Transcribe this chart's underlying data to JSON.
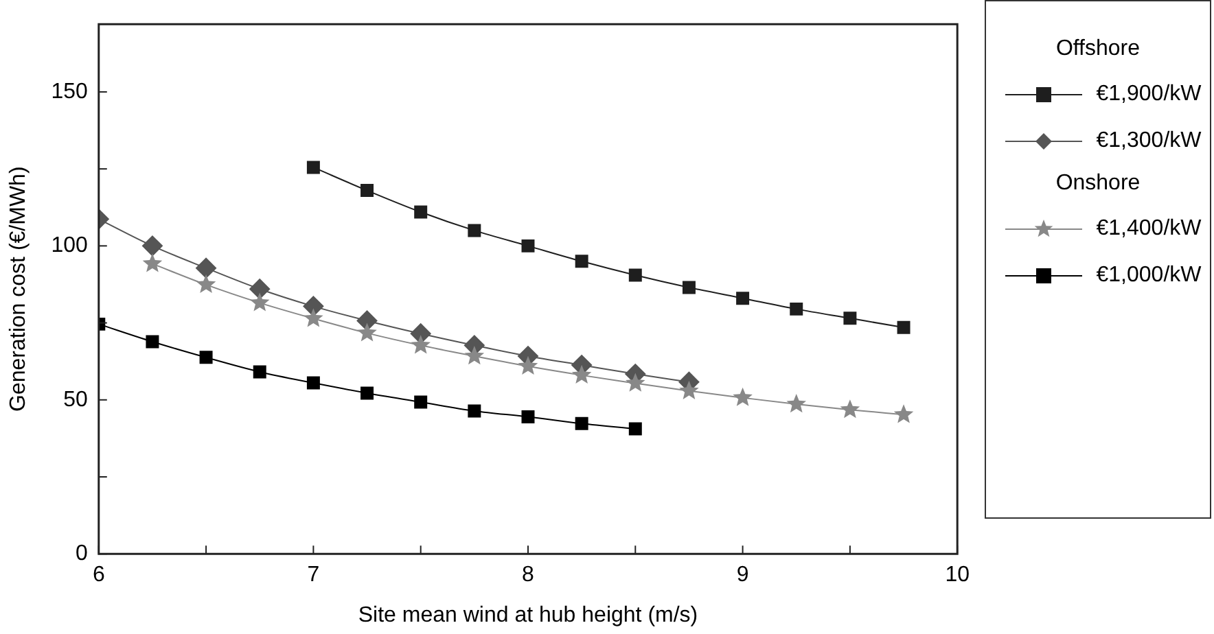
{
  "chart_data": {
    "type": "line",
    "xlabel": "Site mean wind at hub height (m/s)",
    "ylabel": "Generation cost (€/MWh)",
    "xlim": [
      6,
      10
    ],
    "xticks": [
      6,
      {
        "value": 6.5,
        "label": null
      },
      7,
      {
        "value": 7.5,
        "label": null
      },
      8,
      {
        "value": 8.5,
        "label": null
      },
      9,
      {
        "value": 9.5,
        "label": null
      },
      10
    ],
    "ylim": [
      0,
      172
    ],
    "yticks": [
      0,
      {
        "value": 25,
        "label": null
      },
      50,
      {
        "value": 75,
        "label": null
      },
      100,
      {
        "value": 125,
        "label": null
      },
      150
    ],
    "grid": false,
    "legend": "right",
    "line_style": "solid",
    "annotations": [
      "Offshore",
      "Onshore"
    ],
    "series": [
      {
        "name": "€1,900/kW",
        "color": "#1e1e1e",
        "marker": "square",
        "x": [
          7,
          7.25,
          7.5,
          7.75,
          8,
          8.25,
          8.5,
          8.75,
          9,
          9.25,
          9.5,
          9.75
        ],
        "values": [
          125.5,
          118,
          111,
          105,
          100,
          95,
          90.5,
          86.5,
          83,
          79.5,
          76.5,
          73.5
        ]
      },
      {
        "name": "€1,300/kW",
        "color": "#555555",
        "marker": "diamond",
        "x": [
          6,
          6.25,
          6.5,
          6.75,
          7,
          7.25,
          7.5,
          7.75,
          8,
          8.25,
          8.5,
          8.75
        ],
        "values": [
          108.7,
          100,
          92.8,
          86,
          80.4,
          75.7,
          71.5,
          67.7,
          64.2,
          61.3,
          58.4,
          55.8
        ]
      },
      {
        "name": "€1,400/kW",
        "color": "#888888",
        "marker": "star",
        "x": [
          6.25,
          6.5,
          6.75,
          7,
          7.25,
          7.5,
          7.75,
          8,
          8.25,
          8.5,
          8.75,
          9,
          9.25,
          9.5,
          9.75
        ],
        "values": [
          94.2,
          87.4,
          81.5,
          76.4,
          71.7,
          67.7,
          64.2,
          60.9,
          58,
          55.4,
          52.9,
          50.7,
          48.6,
          46.8,
          45.2
        ]
      },
      {
        "name": "€1,000/kW",
        "color": "#000000",
        "marker": "square",
        "x": [
          6,
          6.25,
          6.5,
          6.75,
          7,
          7.25,
          7.5,
          7.75,
          8,
          8.25,
          8.5
        ],
        "values": [
          74.6,
          68.9,
          63.8,
          59.1,
          55.5,
          52.2,
          49.3,
          46.4,
          44.5,
          42.3,
          40.6
        ]
      }
    ]
  }
}
